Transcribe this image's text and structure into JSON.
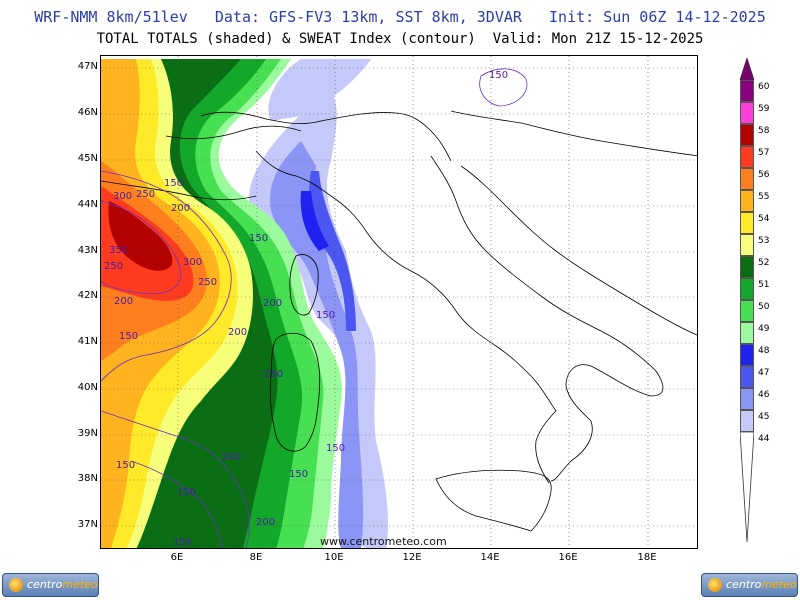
{
  "header": {
    "line1": "WRF-NMM 8km/51lev   Data: GFS-FV3 13km, SST 8km, 3DVAR   Init: Sun 06Z 14-12-2025",
    "line2": "TOTAL TOTALS (shaded) & SWEAT Index (contour)  Valid: Mon 21Z 15-12-2025"
  },
  "lat_labels": [
    "47N",
    "46N",
    "45N",
    "44N",
    "43N",
    "42N",
    "41N",
    "40N",
    "39N",
    "38N",
    "37N"
  ],
  "lon_labels": [
    "6E",
    "8E",
    "10E",
    "12E",
    "14E",
    "16E",
    "18E"
  ],
  "watermark": "www.centrometeo.com",
  "logos": {
    "left": {
      "text_a": "centro",
      "text_b": "meteo"
    },
    "right": {
      "text_a": "centro",
      "text_b": "meteo"
    }
  },
  "colorbar": [
    {
      "label": "60",
      "color": "#8b007f"
    },
    {
      "label": "59",
      "color": "#ff3fd9"
    },
    {
      "label": "58",
      "color": "#b30000"
    },
    {
      "label": "57",
      "color": "#ff3b1f"
    },
    {
      "label": "56",
      "color": "#ff7f1f"
    },
    {
      "label": "55",
      "color": "#ffb31f"
    },
    {
      "label": "54",
      "color": "#ffea2a"
    },
    {
      "label": "53",
      "color": "#f7ff7a"
    },
    {
      "label": "52",
      "color": "#0a6e15"
    },
    {
      "label": "51",
      "color": "#14a82a"
    },
    {
      "label": "50",
      "color": "#46e052"
    },
    {
      "label": "49",
      "color": "#9bfa9b"
    },
    {
      "label": "48",
      "color": "#1f22f0"
    },
    {
      "label": "47",
      "color": "#4b57f0"
    },
    {
      "label": "46",
      "color": "#8b95f5"
    },
    {
      "label": "45",
      "color": "#c4c9fa"
    },
    {
      "label": "44",
      "color": "#ffffff"
    }
  ],
  "contour_labels": [
    "150",
    "300",
    "250",
    "150",
    "200",
    "350",
    "300",
    "250",
    "150",
    "200",
    "200",
    "150",
    "200",
    "250",
    "150",
    "250",
    "200",
    "150",
    "150",
    "150",
    "150",
    "200",
    "150"
  ]
}
